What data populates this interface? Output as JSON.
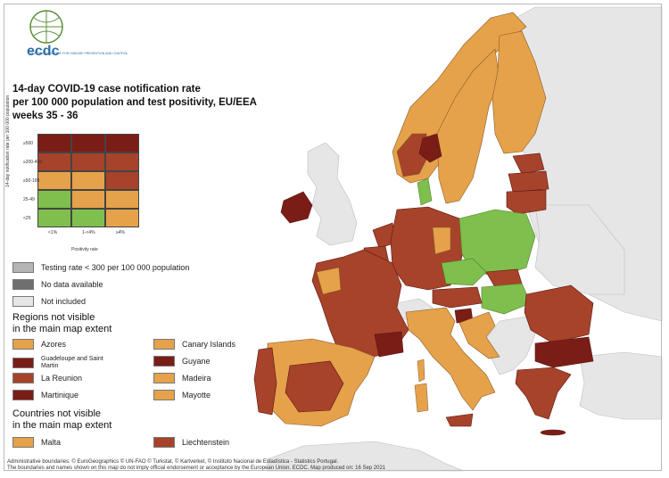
{
  "header": {
    "logo_text": "ecdc",
    "logo_tagline": "EUROPEAN CENTRE FOR DISEASE PREVENTION AND CONTROL"
  },
  "title": {
    "line1": "14-day COVID-19 case notification rate",
    "line2": "per 100 000 population and test positivity, EU/EEA",
    "line3": "weeks 35 - 36"
  },
  "matrix": {
    "y_axis_label": "14-day notification rate per 100 000 population",
    "x_axis_label": "Positivity rate",
    "row_labels": [
      "≥500",
      "≥200-499",
      "≥50-199",
      "25-49",
      "<25"
    ],
    "col_labels": [
      "<1%",
      "1-<4%",
      "≥4%"
    ],
    "cells": [
      [
        "#7b1d17",
        "#7b1d17",
        "#7b1d17"
      ],
      [
        "#a6432a",
        "#a6432a",
        "#a6432a"
      ],
      [
        "#e5a24a",
        "#e5a24a",
        "#a6432a"
      ],
      [
        "#7fbf4d",
        "#e5a24a",
        "#e5a24a"
      ],
      [
        "#7fbf4d",
        "#7fbf4d",
        "#e5a24a"
      ]
    ]
  },
  "status_legend": [
    {
      "label": "Testing rate < 300 per 100 000 population",
      "color": "#b4b4b4"
    },
    {
      "label": "No data available",
      "color": "#6f6f6f"
    },
    {
      "label": "Not included",
      "color": "#e6e6e6"
    }
  ],
  "regions_heading": {
    "line1": "Regions not visible",
    "line2": "in the main map extent"
  },
  "regions": [
    {
      "label": "Azores",
      "color": "#e5a24a"
    },
    {
      "label": "Canary Islands",
      "color": "#e5a24a"
    },
    {
      "label": "Guadeloupe and Saint Martin",
      "color": "#7b1d17"
    },
    {
      "label": "Guyane",
      "color": "#7b1d17"
    },
    {
      "label": "La Reunion",
      "color": "#a6432a"
    },
    {
      "label": "Madeira",
      "color": "#e5a24a"
    },
    {
      "label": "Martinique",
      "color": "#7b1d17"
    },
    {
      "label": "Mayotte",
      "color": "#e5a24a"
    }
  ],
  "countries_heading": {
    "line1": "Countries not visible",
    "line2": "in the main map extent"
  },
  "countries": [
    {
      "label": "Malta",
      "color": "#e5a24a"
    },
    {
      "label": "Liechtenstein",
      "color": "#a6432a"
    }
  ],
  "footer": {
    "line1": "Administrative boundaries: © EuroGeographics © UN-FAO © Turkstat, © Kartverket, © Instituto Nacional de Estadística - Statistics Portugal.",
    "line2": "The boundaries and names shown on this map do not imply official endorsement or acceptance by the European Union. ECDC. Map produced on: 16 Sep 2021"
  },
  "colors": {
    "dark_red": "#7b1d17",
    "red_brown": "#a6432a",
    "orange": "#e5a24a",
    "green": "#7fbf4d",
    "not_included": "#e6e6e6",
    "no_data": "#6f6f6f",
    "low_testing": "#b4b4b4"
  }
}
